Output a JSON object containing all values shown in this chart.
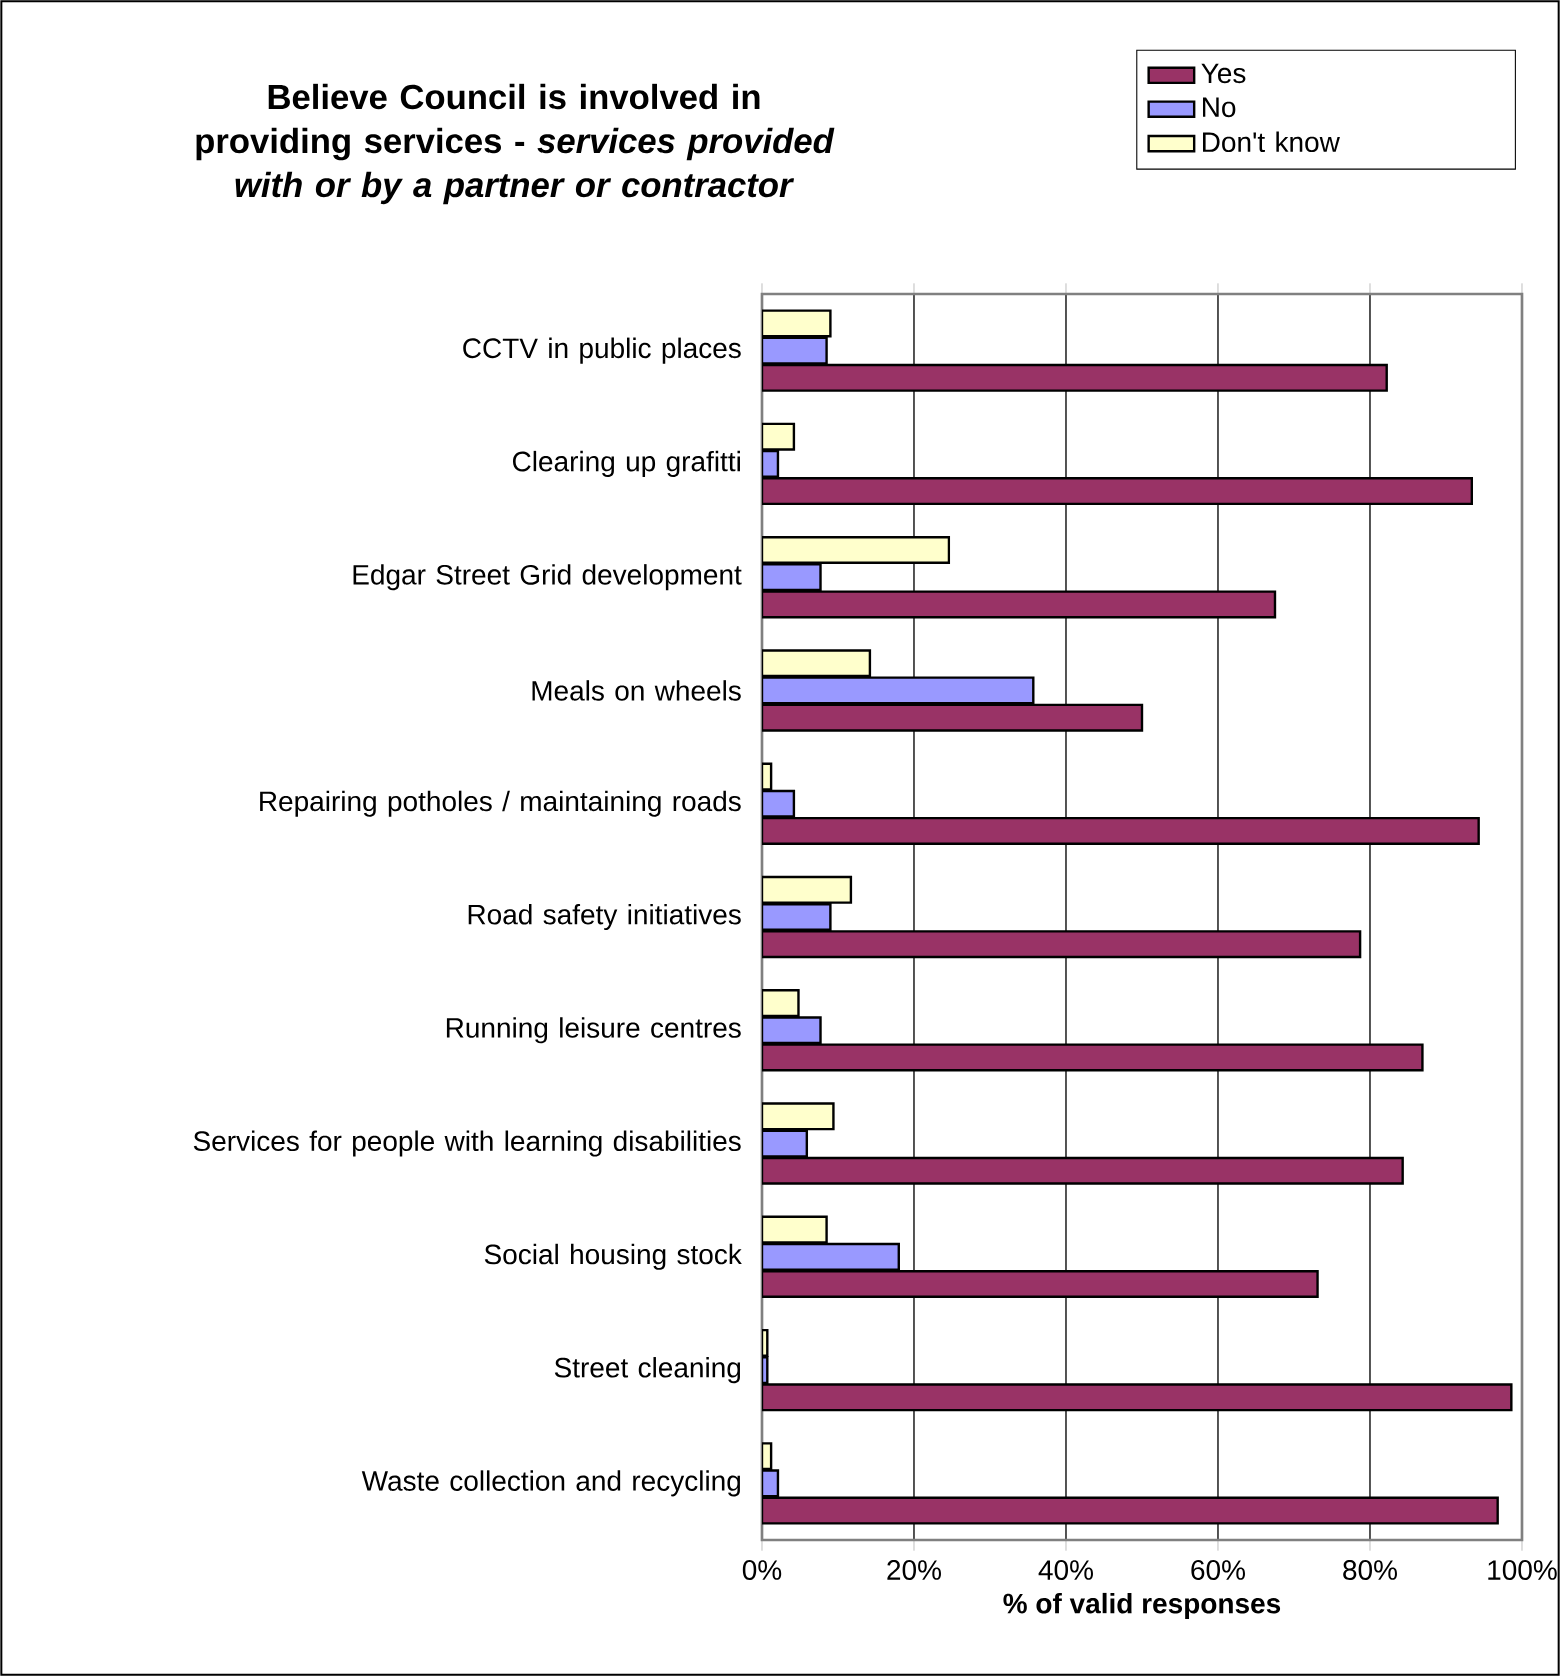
{
  "chart_data": {
    "type": "bar",
    "orientation": "horizontal",
    "title": "Believe Council is involved in providing services - *services provided with or by a partner or contractor*",
    "xlabel": "% of valid responses",
    "categories": [
      "CCTV in public places",
      "Clearing up grafitti",
      "Edgar Street Grid development",
      "Meals on wheels",
      "Repairing potholes / maintaining roads",
      "Road safety initiatives",
      "Running leisure centres",
      "Services for people with learning disabilities",
      "Social housing stock",
      "Street cleaning",
      "Waste collection and recycling"
    ],
    "series": [
      {
        "name": "Yes",
        "color": "#993366",
        "values": [
          82.2,
          93.4,
          67.5,
          50,
          94.3,
          78.7,
          86.9,
          84.3,
          73.1,
          98.6,
          96.8
        ]
      },
      {
        "name": "No",
        "color": "#9999ff",
        "values": [
          8.5,
          2.1,
          7.7,
          35.7,
          4.2,
          9.0,
          7.7,
          5.9,
          18.0,
          0.7,
          2.1
        ]
      },
      {
        "name": "Don't know",
        "color": "#ffffcc",
        "values": [
          9.0,
          4.2,
          24.6,
          14.2,
          1.2,
          11.7,
          4.8,
          9.4,
          8.5,
          0.7,
          1.2
        ]
      }
    ],
    "xlim": [
      0,
      100
    ],
    "xticks": [
      {
        "value": 0,
        "label": "0%"
      },
      {
        "value": 20,
        "label": "20%"
      },
      {
        "value": 40,
        "label": "40%"
      },
      {
        "value": 60,
        "label": "60%"
      },
      {
        "value": 80,
        "label": "80%"
      },
      {
        "value": 100,
        "label": "100%"
      }
    ],
    "grid": "x",
    "legend": "top right"
  }
}
